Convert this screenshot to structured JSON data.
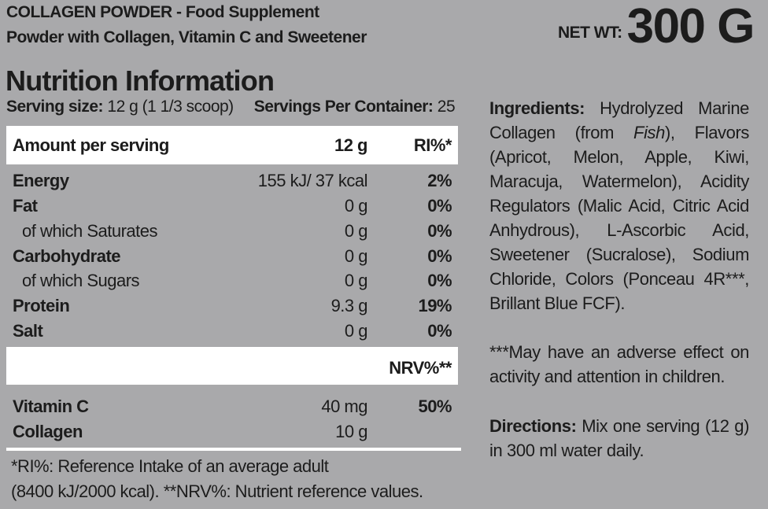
{
  "header": {
    "title": "COLLAGEN POWDER - Food Supplement",
    "subtitle": "Powder with Collagen, Vitamin C and Sweetener",
    "net_weight_label": "NET WT:",
    "net_weight_value": "300 G"
  },
  "nutrition": {
    "title": "Nutrition Information",
    "serving_size_label": "Serving size:",
    "serving_size_value": "12 g (1 1/3 scoop)",
    "servings_per_container_label": "Servings Per Container:",
    "servings_per_container_value": "25",
    "table_header": {
      "label": "Amount per serving",
      "amount": "12 g",
      "percent": "RI%*"
    },
    "rows": [
      {
        "label": "Energy",
        "amount": "155 kJ/ 37 kcal",
        "percent": "2%"
      },
      {
        "label": "Fat",
        "amount": "0 g",
        "percent": "0%"
      },
      {
        "label": "of which Saturates",
        "amount": "0 g",
        "percent": "0%"
      },
      {
        "label": "Carbohydrate",
        "amount": "0 g",
        "percent": "0%"
      },
      {
        "label": "of which Sugars",
        "amount": "0 g",
        "percent": "0%"
      },
      {
        "label": "Protein",
        "amount": "9.3 g",
        "percent": "19%"
      },
      {
        "label": "Salt",
        "amount": "0 g",
        "percent": "0%"
      }
    ],
    "nrv_header": "NRV%**",
    "nrv_rows": [
      {
        "label": "Vitamin C",
        "amount": "40 mg",
        "percent": "50%"
      },
      {
        "label": "Collagen",
        "amount": "10 g",
        "percent": ""
      }
    ],
    "footnote_line1": "*RI%: Reference Intake of an average adult",
    "footnote_line2": "(8400 kJ/2000 kcal). **NRV%: Nutrient reference values."
  },
  "ingredients": {
    "label": "Ingredients:",
    "text_before_italic": " Hydrolyzed Marine Collagen (from ",
    "italic": "Fish",
    "text_after_italic": "), Flavors (Apricot, Melon, Apple, Kiwi, Maracuja, Watermelon), Acidity Regulators (Malic Acid, Citric Acid Anhydrous), L-Ascorbic Acid, Sweetener (Sucralose), Sodium Chloride, Colors (Ponceau 4R***, Brillant Blue FCF)."
  },
  "warning": "***May have an adverse effect on activity and attention in children.",
  "directions": {
    "label": "Directions:",
    "text": " Mix one serving (12 g) in 300 ml water daily."
  }
}
